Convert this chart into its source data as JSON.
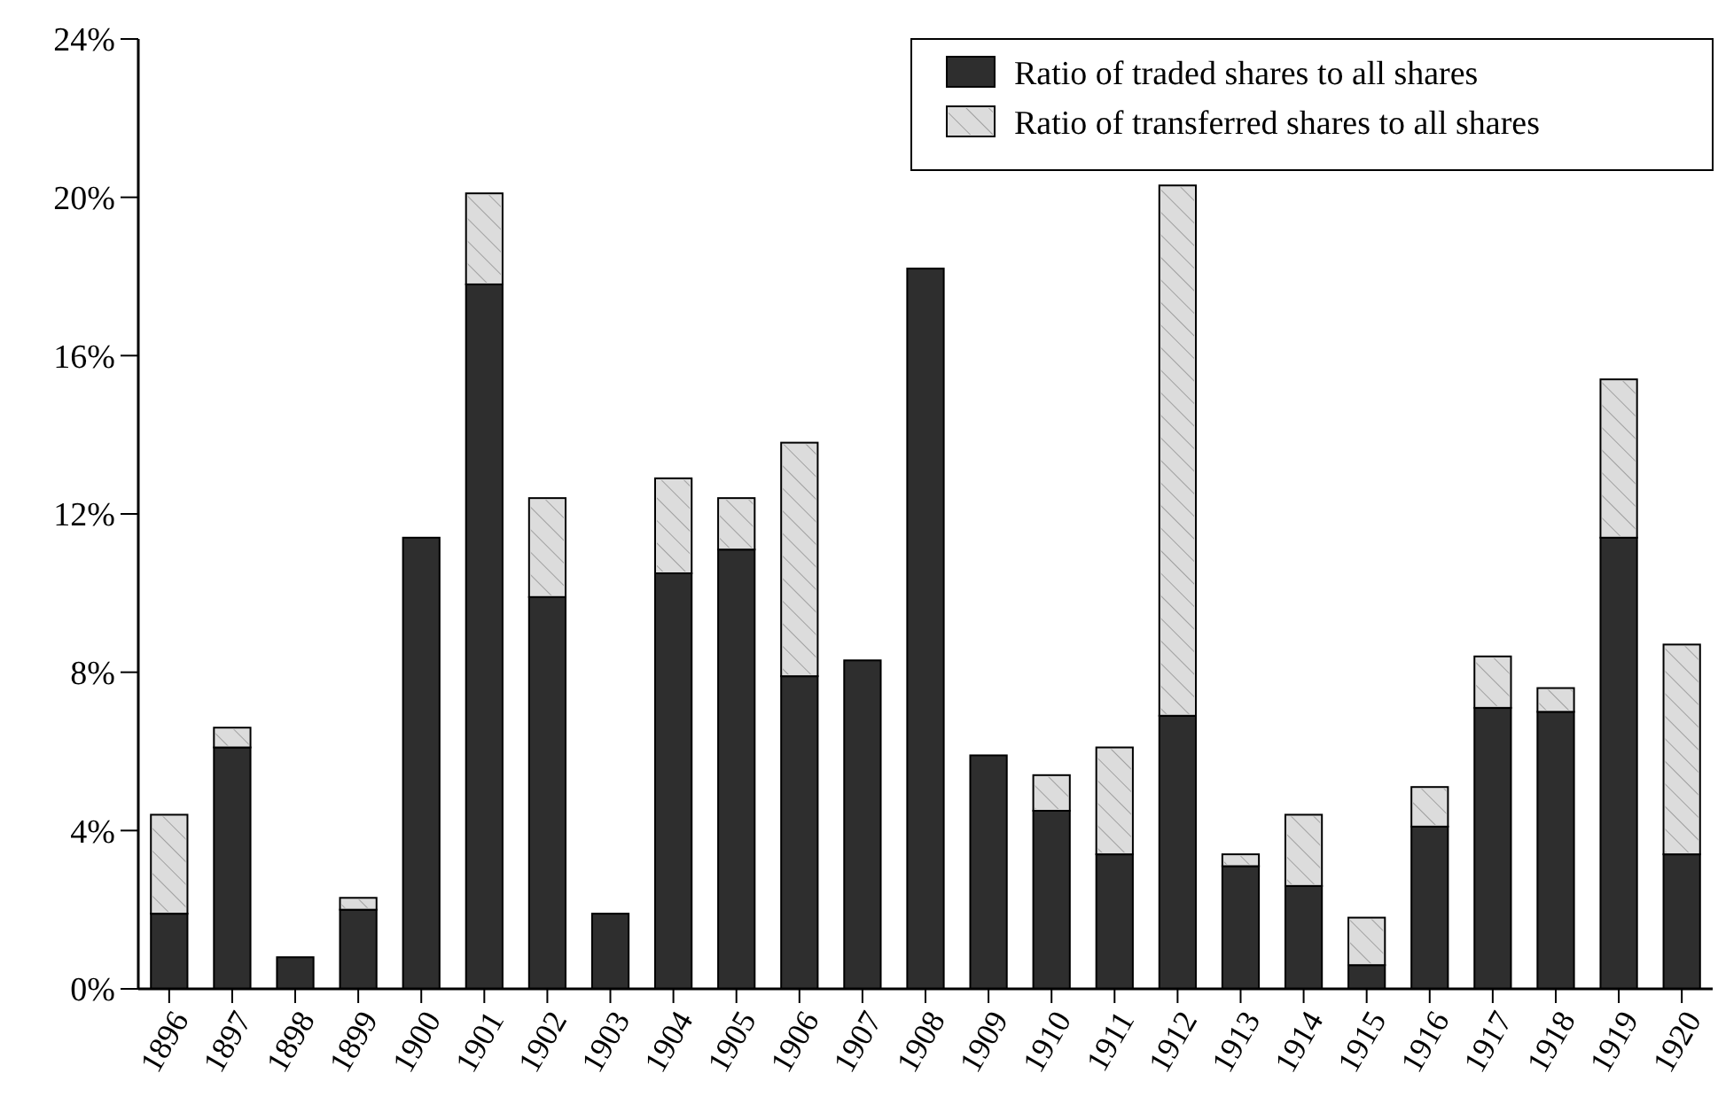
{
  "chart_data": {
    "type": "bar",
    "stacked": true,
    "categories": [
      "1896",
      "1897",
      "1898",
      "1899",
      "1900",
      "1901",
      "1902",
      "1903",
      "1904",
      "1905",
      "1906",
      "1907",
      "1908",
      "1909",
      "1910",
      "1911",
      "1912",
      "1913",
      "1914",
      "1915",
      "1916",
      "1917",
      "1918",
      "1919",
      "1920"
    ],
    "series": [
      {
        "name": "Ratio of traded shares to all shares",
        "color": "#2e2e2e",
        "values": [
          1.9,
          6.1,
          0.8,
          2.0,
          11.4,
          17.8,
          9.9,
          1.9,
          10.5,
          11.1,
          7.9,
          8.3,
          18.2,
          5.9,
          4.5,
          3.4,
          6.9,
          3.1,
          2.6,
          0.6,
          4.1,
          7.1,
          7.0,
          11.4,
          3.4
        ]
      },
      {
        "name": "Ratio of transferred shares to all shares",
        "color": "#dcdcdc",
        "values": [
          2.5,
          0.5,
          0,
          0.3,
          0,
          2.3,
          2.5,
          0,
          2.4,
          1.3,
          5.9,
          0,
          0,
          0,
          0.9,
          2.7,
          13.4,
          0.3,
          1.8,
          1.2,
          1.0,
          1.3,
          0.6,
          4.0,
          5.3
        ]
      }
    ],
    "ylim": [
      0,
      24
    ],
    "yticks": [
      {
        "value": 0,
        "label": "0%"
      },
      {
        "value": 4,
        "label": "4%"
      },
      {
        "value": 8,
        "label": "8%"
      },
      {
        "value": 12,
        "label": "12%"
      },
      {
        "value": 16,
        "label": "16%"
      },
      {
        "value": 20,
        "label": "20%"
      },
      {
        "value": 24,
        "label": "24%"
      }
    ],
    "grid": false,
    "legend": "top right"
  }
}
